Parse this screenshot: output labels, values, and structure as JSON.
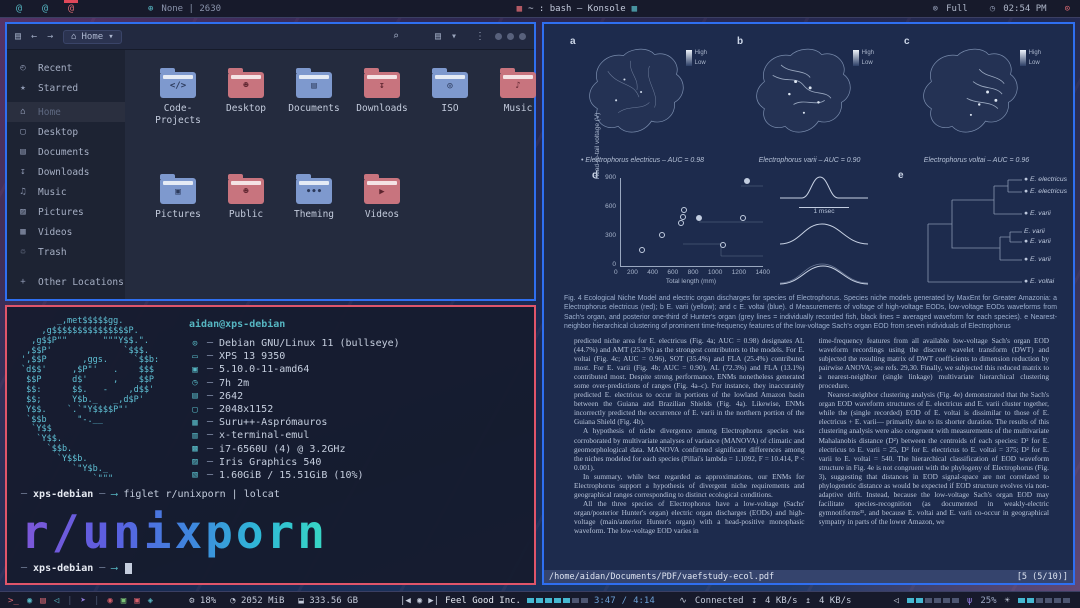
{
  "accents": {
    "focused_border": "#e0556a",
    "normal_border": "#2f6ff0",
    "teal": "#56b6c2",
    "red": "#e06c75",
    "folder_blue": "#7e99ce",
    "folder_red": "#c8747e",
    "bar_bg": "#171a2b"
  },
  "topbar": {
    "workspaces": [
      "@",
      "@",
      "@"
    ],
    "app_indicator": {
      "icon": "⊕",
      "label": "None | 2630"
    },
    "title": {
      "left_icon": "▦",
      "text": "~ : bash — Konsole",
      "right_icon": "▦"
    },
    "battery": {
      "icon": "⊗",
      "label": "Full"
    },
    "clock": {
      "icon": "◷",
      "time": "02:54 PM"
    },
    "power_icon": "⊙"
  },
  "filemanager": {
    "toolbar": {
      "menu_icon": "▤",
      "back": "←",
      "forward": "→",
      "home_icon": "⌂",
      "breadcrumb": "Home",
      "crumb_arrow": "▾",
      "search_icon": "⌕",
      "view_icon": "▤",
      "view_arrow": "▾",
      "overflow_icon": "⋮"
    },
    "sidebar": {
      "items": [
        {
          "icon": "◴",
          "label": "Recent"
        },
        {
          "icon": "★",
          "label": "Starred"
        },
        {
          "icon": "⌂",
          "label": "Home"
        },
        {
          "icon": "▢",
          "label": "Desktop"
        },
        {
          "icon": "▤",
          "label": "Documents"
        },
        {
          "icon": "↧",
          "label": "Downloads"
        },
        {
          "icon": "♫",
          "label": "Music"
        },
        {
          "icon": "▨",
          "label": "Pictures"
        },
        {
          "icon": "▦",
          "label": "Videos"
        },
        {
          "icon": "♲",
          "label": "Trash"
        },
        {
          "icon": "+",
          "label": "Other Locations"
        }
      ]
    },
    "folders": [
      {
        "name": "Code-\nProjects",
        "color": "blue",
        "glyph": "</>"
      },
      {
        "name": "Desktop",
        "color": "red",
        "glyph": "☻"
      },
      {
        "name": "Documents",
        "color": "blue",
        "glyph": "▤"
      },
      {
        "name": "Downloads",
        "color": "red",
        "glyph": "↧"
      },
      {
        "name": "ISO",
        "color": "blue",
        "glyph": "◎"
      },
      {
        "name": "Music",
        "color": "red",
        "glyph": "♪"
      },
      {
        "name": "Pictures",
        "color": "blue",
        "glyph": "▣"
      },
      {
        "name": "Public",
        "color": "red",
        "glyph": "☻"
      },
      {
        "name": "Theming",
        "color": "blue",
        "glyph": "•••"
      },
      {
        "name": "Videos",
        "color": "red",
        "glyph": "▶"
      }
    ]
  },
  "terminal": {
    "ascii_art": "       _,met$$$$$gg.\n    ,g$$$$$$$$$$$$$$$P.\n  ,g$$P\"\"       \"\"\"Y$$.\".\n ,$$P'              `$$$.\n',$$P       ,ggs.     `$$b:\n`d$$'     ,$P\"'   .    $$$\n $$P      d$'     ,    $$P\n $$:      $$.   -    ,d$$'\n $$;      Y$b._   _,d$P'\n Y$$.    `.`\"Y$$$$P\"'\n `$$b      \"-.__\n  `Y$$\n   `Y$$.\n     `$$b.\n       `Y$$b.\n          `\"Y$b._\n              `\"\"\"",
    "user_host": "aidan@xps-debian",
    "info": [
      {
        "icon": "⊙",
        "text": "Debian GNU/Linux 11 (bullseye)"
      },
      {
        "icon": "▭",
        "text": "XPS 13 9350"
      },
      {
        "icon": "▣",
        "text": "5.10.0-11-amd64"
      },
      {
        "icon": "◷",
        "text": "7h 2m"
      },
      {
        "icon": "▤",
        "text": "2642"
      },
      {
        "icon": "▢",
        "text": "2048x1152"
      },
      {
        "icon": "▦",
        "text": "Suru++-Asprómauros"
      },
      {
        "icon": "▥",
        "text": "x-terminal-emul"
      },
      {
        "icon": "▩",
        "text": "i7-6560U (4) @ 3.2GHz"
      },
      {
        "icon": "▨",
        "text": "Iris Graphics 540"
      },
      {
        "icon": "▧",
        "text": "1.60GiB / 15.51GiB (10%)"
      }
    ],
    "prompt": {
      "dash_left": "─",
      "host": "xps-debian",
      "dash_right": "─",
      "arrow": "⟶"
    },
    "command": "figlet r/unixporn | lolcat",
    "figlet_text": "r/unixporn"
  },
  "pdf": {
    "maps": [
      {
        "label": "a",
        "caption": "• Electrophorus electricus – AUC = 0.98",
        "legend_high": "High",
        "legend_low": "Low"
      },
      {
        "label": "b",
        "caption": "Electrophorus varii – AUC = 0.90",
        "legend_high": "High",
        "legend_low": "Low"
      },
      {
        "label": "c",
        "caption": "Electrophorus voltai – AUC = 0.96",
        "legend_high": "High",
        "legend_low": "Low"
      }
    ],
    "panel_d": {
      "label": "d",
      "ylabel": "Head-to-tail voltage (V)",
      "xlabel": "Total length (mm)",
      "yticks": [
        "900",
        "600",
        "300",
        "0"
      ],
      "xticks": [
        "0",
        "200",
        "400",
        "600",
        "800",
        "1000",
        "1200",
        "1400"
      ],
      "scale_label": "1 msec",
      "points": [
        [
          200,
          150,
          0
        ],
        [
          390,
          310,
          0
        ],
        [
          580,
          430,
          0
        ],
        [
          600,
          490,
          0
        ],
        [
          610,
          565,
          0
        ],
        [
          760,
          480,
          1
        ],
        [
          1000,
          200,
          0
        ],
        [
          1190,
          480,
          0
        ],
        [
          1230,
          860,
          1
        ]
      ],
      "xmax": 1400,
      "ymax": 900
    },
    "panel_e": {
      "label": "e",
      "leaves": [
        "● E. electricus",
        "● E. electricus",
        "● E. varii",
        "E. varii",
        "● E. varii",
        "● E. varii",
        "● E. voltai"
      ]
    },
    "fig_caption": "Fig. 4 Ecological Niche Model and electric organ discharges for species of Electrophorus. Species niche models generated by MaxEnt for Greater Amazonia: a Electrophorus electricus (red); b E. varii (yellow); and c E. voltai (blue). d Measurements of voltage of high-voltage EODs, low-voltage EODs waveforms from Sach's organ, and posterior one-third of Hunter's organ (grey lines = individually recorded fish, black lines = averaged waveform for each species). e Nearest-neighbor hierarchical clustering of prominent time-frequency features of the low-voltage Sach's organ EOD from seven individuals of Electrophorus",
    "fig_caption_bold": "Fig. 4",
    "body_left": [
      "predicted niche area for E. electricus (Fig. 4a; AUC = 0.98) designates AL (44.7%) and AMT (25.3%) as the strongest contributors to the models. For E. voltai (Fig. 4c; AUC = 0.96), SOT (35.4%) and FLA (25.4%) contributed most. For E. varii (Fig. 4b; AUC = 0.90), AL (72.3%) and FLA (13.1%) contributed most. Despite strong performance, ENMs nonetheless generated some over-predictions of ranges (Fig. 4a–c). For instance, they inaccurately predicted E. electricus to occur in portions of the lowland Amazon basin between the Guiana and Brazilian Shields (Fig. 4a). Likewise, ENMs incorrectly predicted the occurrence of E. varii in the northern portion of the Guiana Shield (Fig. 4b).",
      "A hypothesis of niche divergence among Electrophorus species was corroborated by multivariate analyses of variance (MANOVA) of climatic and geomorphological data. MANOVA confirmed significant differences among the niches modeled for each species (Pillai's lambda = 1.1092, F = 10.414, P < 0.001).",
      "In summary, while best regarded as approximations, our ENMs for Electrophorus support a hypothesis of divergent niche requirements and geographical ranges corresponding to distinct ecological conditions.",
      "All the three species of Electrophorus have a low-voltage (Sachs' organ/posterior Hunter's organ) electric organ discharges (EODs) and high-voltage (main/anterior Hunter's organ) with a head-positive monophasic waveform. The low-voltage EOD varies in"
    ],
    "body_right": [
      "time-frequency features from all available low-voltage Sach's organ EOD waveform recordings using the discrete wavelet transform (DWT) and subjected the resulting matrix of DWT coefficients to dimension reduction by pairwise ANOVA; see refs. 29,30. Finally, we subjected this reduced matrix to a nearest-neighbor (single linkage) multivariate hierarchical clustering procedure.",
      "Nearest-neighbor clustering analysis (Fig. 4e) demonstrated that the Sach's organ EOD waveform structures of E. electricus and E. varii cluster together, while the (single recorded) EOD of E. voltai is dissimilar to those of E. electricus + E. varii— primarily due to its shorter duration. The results of this clustering analysis were also congruent with measurements of the multivariate Mahalanobis distance (D²) between the centroids of each species: D² for E. electricus to E. varii = 25, D² for E. electricus to E. voltai = 375; D² for E. varii to E. voltai = 540. The hierarchical classification of EOD waveform structure in Fig. 4e is not congruent with the phylogeny of Electrophorus (Fig. 3), suggesting that distances in EOD signal-space are not correlated to phylogenetic distance as would be expected if EOD structure evolves via non-adaptive drift. Instead, because the low-voltage Sach's organ EOD may facilitate species-recognition (as documented in weakly-electric gymnotiforms³¹, and because E. voltai and E. varii co-occur in geographical sympatry in parts of the lower Amazon, we"
    ],
    "statusbar": {
      "path": "/home/aidan/Documents/PDF/vaefstudy-ecol.pdf",
      "page_indicator": "[5 (5/10)]"
    }
  },
  "bottombar": {
    "launchers": [
      {
        "icon": ">_",
        "color": "#e06c75",
        "name": "terminal"
      },
      {
        "icon": "◉",
        "color": "#56b6c2",
        "name": "browser"
      },
      {
        "icon": "▤",
        "color": "#e06c75",
        "name": "files"
      },
      {
        "icon": "◁",
        "color": "#56b6c2",
        "name": "speaker"
      },
      {
        "icon": "➤",
        "color": "#8f7bd8",
        "name": "rocket"
      },
      {
        "icon": "◉",
        "color": "#d65f6a",
        "name": "app-red-circle"
      },
      {
        "icon": "▣",
        "color": "#7bc275",
        "name": "app-green"
      },
      {
        "icon": "▣",
        "color": "#d65f6a",
        "name": "app-red"
      },
      {
        "icon": "◈",
        "color": "#56b6c2",
        "name": "app-teal"
      }
    ],
    "cpu": {
      "icon": "⚙",
      "value": "18%"
    },
    "memory": {
      "icon": "◔",
      "value": "2052 MiB"
    },
    "disk": {
      "icon": "⬓",
      "value": "333.56 GB"
    },
    "media": {
      "prev_icon": "|◀",
      "pause_icon": "◉",
      "next_icon": "▶|",
      "track": "Feel Good Inc.",
      "progress_filled": 5,
      "progress_total": 7,
      "elapsed": "3:47",
      "total": "4:14",
      "time_sep": "/"
    },
    "network": {
      "icon": "∿",
      "status": "Connected",
      "down_icon": "↧",
      "down": "4 KB/s",
      "up_icon": "↥",
      "up": "4 KB/s"
    },
    "volume": {
      "icon": "◁",
      "filled": 2,
      "total": 6
    },
    "mic": {
      "icon": "ψ",
      "value": "25%"
    },
    "brightness": {
      "icon": "☀",
      "filled": 2,
      "total": 6
    }
  }
}
